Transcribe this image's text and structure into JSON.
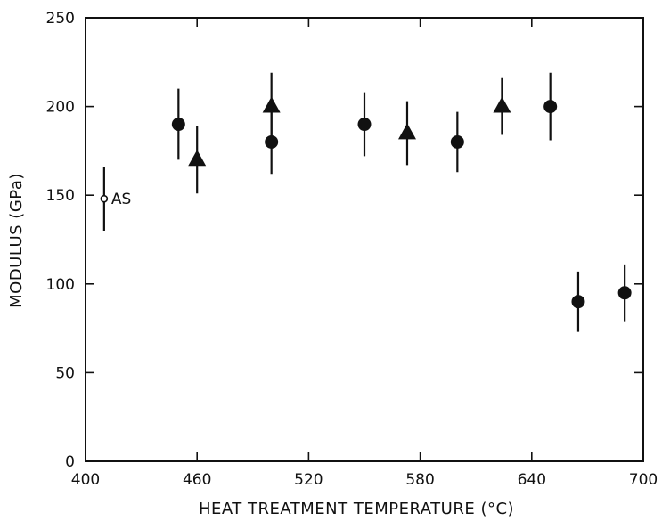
{
  "chart_data": {
    "type": "scatter",
    "title": "",
    "xlabel": "HEAT TREATMENT TEMPERATURE (°C)",
    "ylabel": "MODULUS (GPa)",
    "xlim": [
      400,
      700
    ],
    "ylim": [
      0,
      250
    ],
    "xticks": [
      400,
      460,
      520,
      580,
      640,
      700
    ],
    "yticks": [
      0,
      50,
      100,
      150,
      200,
      250
    ],
    "grid": false,
    "legend": "none",
    "series": [
      {
        "marker": "open-circle",
        "points": [
          {
            "x": 410,
            "y": 148,
            "err": 18
          }
        ]
      },
      {
        "marker": "circle",
        "points": [
          {
            "x": 450,
            "y": 190,
            "err": 20
          },
          {
            "x": 500,
            "y": 180,
            "err": 18
          },
          {
            "x": 550,
            "y": 190,
            "err": 18
          },
          {
            "x": 600,
            "y": 180,
            "err": 17
          },
          {
            "x": 650,
            "y": 200,
            "err": 19
          },
          {
            "x": 665,
            "y": 90,
            "err": 17
          },
          {
            "x": 690,
            "y": 95,
            "err": 16
          }
        ]
      },
      {
        "marker": "triangle",
        "points": [
          {
            "x": 460,
            "y": 170,
            "err": 19
          },
          {
            "x": 500,
            "y": 200,
            "err": 19
          },
          {
            "x": 573,
            "y": 185,
            "err": 18
          },
          {
            "x": 624,
            "y": 200,
            "err": 16
          }
        ]
      }
    ],
    "annotations": [
      {
        "text": "AS",
        "x": 410,
        "y": 148
      }
    ]
  }
}
